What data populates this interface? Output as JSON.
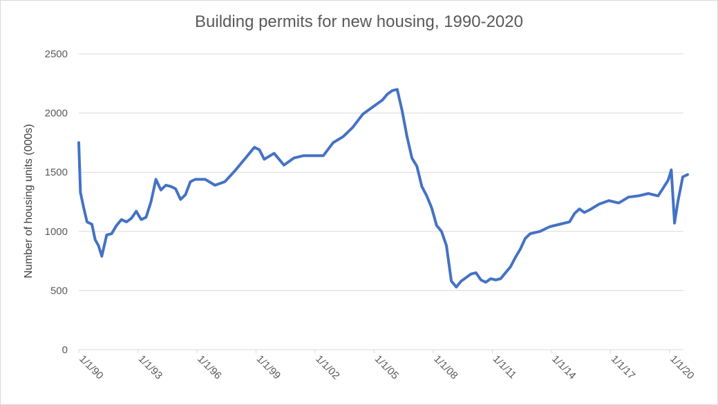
{
  "chart_data": {
    "type": "line",
    "title": "Building permits for new housing, 1990-2020",
    "xlabel": "",
    "ylabel": "Number of housing units (000s)",
    "ylim": [
      0,
      2500
    ],
    "yticks": [
      "0",
      "500",
      "1000",
      "1500",
      "2000",
      "2500"
    ],
    "xticks": [
      "1/1/90",
      "1/1/93",
      "1/1/96",
      "1/1/99",
      "1/1/02",
      "1/1/05",
      "1/1/08",
      "1/1/11",
      "1/1/14",
      "1/1/17",
      "1/1/20"
    ],
    "grid": true,
    "legend": "none",
    "line_color": "#4472C4",
    "series": [
      {
        "x": [
          "1990-01",
          "1990-02",
          "1990-04",
          "1990-06",
          "1990-09",
          "1990-11",
          "1991-01",
          "1991-03",
          "1991-06",
          "1991-09",
          "1991-12",
          "1992-03",
          "1992-06",
          "1992-09",
          "1992-12",
          "1993-03",
          "1993-06",
          "1993-09",
          "1993-12",
          "1994-03",
          "1994-06",
          "1994-09",
          "1994-12",
          "1995-03",
          "1995-06",
          "1995-09",
          "1995-12",
          "1996-06",
          "1996-12",
          "1997-06",
          "1997-12",
          "1998-06",
          "1998-12",
          "1999-03",
          "1999-06",
          "1999-12",
          "2000-06",
          "2000-12",
          "2001-06",
          "2001-12",
          "2002-06",
          "2002-12",
          "2003-06",
          "2003-12",
          "2004-06",
          "2004-12",
          "2005-06",
          "2005-09",
          "2005-12",
          "2006-03",
          "2006-06",
          "2006-09",
          "2006-12",
          "2007-03",
          "2007-06",
          "2007-09",
          "2007-12",
          "2008-03",
          "2008-06",
          "2008-09",
          "2008-12",
          "2009-03",
          "2009-06",
          "2009-09",
          "2009-12",
          "2010-03",
          "2010-06",
          "2010-09",
          "2010-12",
          "2011-03",
          "2011-06",
          "2011-09",
          "2011-12",
          "2012-03",
          "2012-06",
          "2012-09",
          "2012-12",
          "2013-06",
          "2013-12",
          "2014-06",
          "2014-12",
          "2015-03",
          "2015-06",
          "2015-09",
          "2015-12",
          "2016-06",
          "2016-12",
          "2017-06",
          "2017-12",
          "2018-06",
          "2018-12",
          "2019-06",
          "2019-12",
          "2020-01",
          "2020-02",
          "2020-04",
          "2020-06",
          "2020-09",
          "2020-12"
        ],
        "y": [
          1750,
          1330,
          1200,
          1080,
          1060,
          930,
          880,
          790,
          970,
          980,
          1050,
          1100,
          1080,
          1110,
          1170,
          1100,
          1120,
          1250,
          1440,
          1350,
          1390,
          1380,
          1360,
          1270,
          1310,
          1420,
          1440,
          1440,
          1390,
          1420,
          1510,
          1610,
          1710,
          1690,
          1610,
          1660,
          1560,
          1620,
          1640,
          1640,
          1640,
          1750,
          1800,
          1880,
          1990,
          2050,
          2110,
          2160,
          2190,
          2200,
          2020,
          1800,
          1620,
          1550,
          1380,
          1300,
          1200,
          1050,
          1000,
          880,
          580,
          530,
          580,
          610,
          640,
          650,
          590,
          570,
          600,
          590,
          600,
          650,
          700,
          780,
          850,
          940,
          980,
          1000,
          1040,
          1060,
          1080,
          1150,
          1190,
          1160,
          1180,
          1230,
          1260,
          1240,
          1290,
          1300,
          1320,
          1300,
          1430,
          1470,
          1520,
          1070,
          1250,
          1460,
          1480
        ]
      }
    ]
  }
}
